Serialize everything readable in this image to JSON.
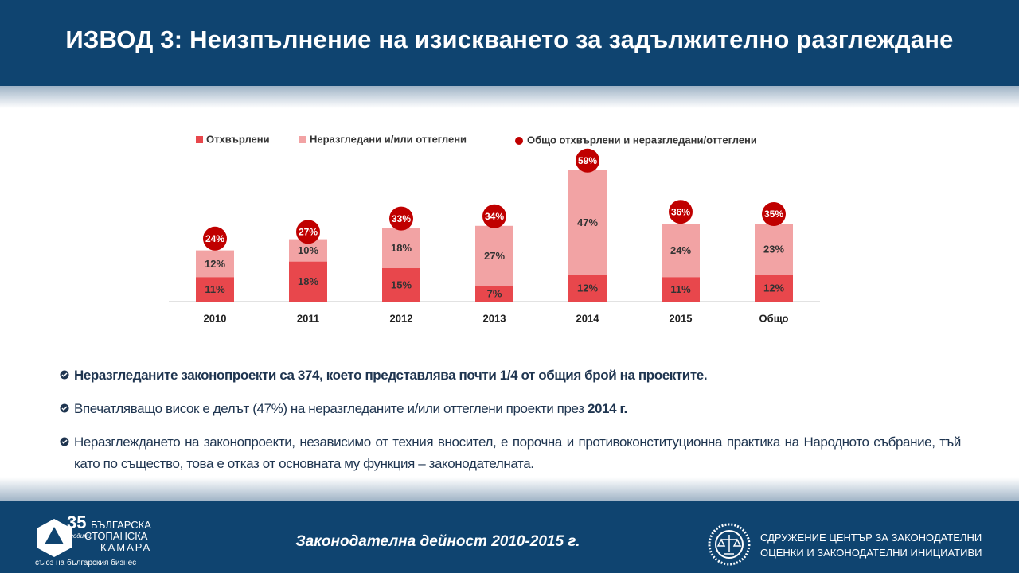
{
  "header": {
    "title": "ИЗВОД 3: Неизпълнение на изискването за задължително разглеждане"
  },
  "chart_data": {
    "type": "stacked-bar",
    "categories": [
      "2010",
      "2011",
      "2012",
      "2013",
      "2014",
      "2015",
      "Общо"
    ],
    "series": [
      {
        "name": "Отхвърлени",
        "color": "#e8474c",
        "values": [
          11,
          18,
          15,
          7,
          12,
          11,
          12
        ],
        "value_labels": [
          "11%",
          "18%",
          "15%",
          "7%",
          "12%",
          "11%",
          "12%"
        ]
      },
      {
        "name": "Неразгледани и/или оттеглени",
        "color": "#f2a3a4",
        "values": [
          12,
          10,
          18,
          27,
          47,
          24,
          23
        ],
        "value_labels": [
          "12%",
          "10%",
          "18%",
          "27%",
          "47%",
          "24%",
          "23%"
        ]
      }
    ],
    "total": {
      "name": "Общо отхвърлени и неразгледани/оттеглени",
      "color": "#c00000",
      "values": [
        24,
        27,
        33,
        34,
        59,
        36,
        35
      ],
      "value_labels": [
        "24%",
        "27%",
        "33%",
        "34%",
        "59%",
        "36%",
        "35%"
      ]
    }
  },
  "bullets": [
    {
      "bold": "Неразгледаните законопроекти са 374, което представлява почти 1/4 от общия брой на проектите."
    },
    {
      "text": "Впечатляващо висок е делът (47%) на неразгледаните и/или оттеглени проекти през ",
      "bold": "2014 г."
    },
    {
      "text": "Неразглеждането на законопроекти, независимо от техния вносител, е порочна и противоконституционна практика на Народното събрание, тъй като по същество, това е отказ от основната му функция – законодателната."
    }
  ],
  "footer": {
    "caption": "Законодателна дейност 2010-2015 г.",
    "left_logo": {
      "years": "35",
      "years_word": "години",
      "line1": "БЪЛГАРСКА",
      "line2": "СТОПАНСКА",
      "line3": "КАМАРА",
      "tagline": "съюз на българския бизнес"
    },
    "right_logo": {
      "line1": "СДРУЖЕНИЕ ЦЕНТЪР ЗА ЗАКОНОДАТЕЛНИ",
      "line2": "ОЦЕНКИ И ЗАКОНОДАТЕЛНИ ИНИЦИАТИВИ"
    }
  }
}
